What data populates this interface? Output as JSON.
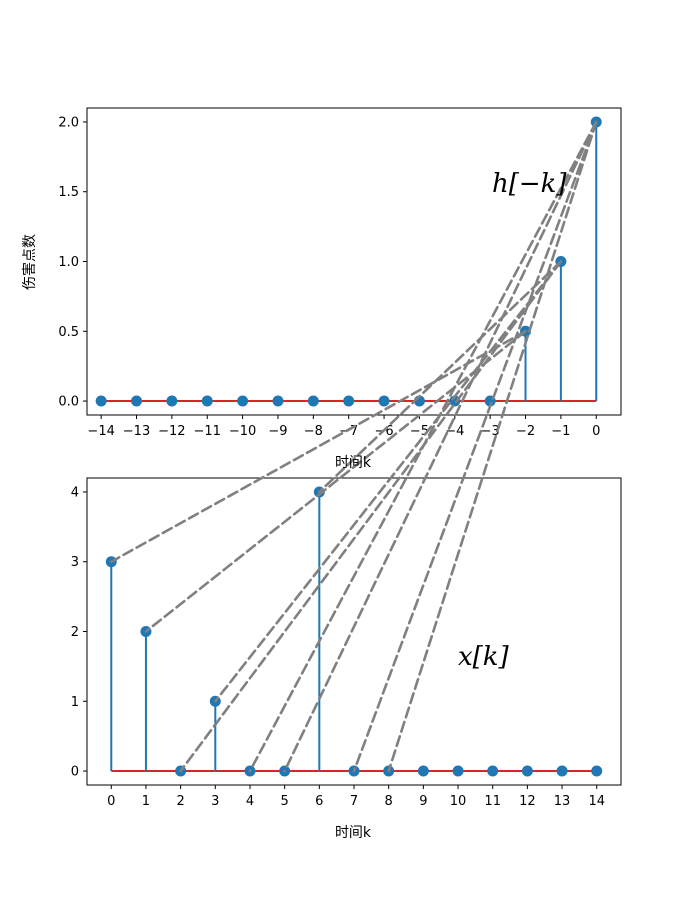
{
  "chart_data": [
    {
      "type": "stem",
      "id": "top",
      "ylabel": "伤害点数",
      "xlabel": "时间k",
      "annotation": "h[−k]",
      "x": [
        -14,
        -13,
        -12,
        -11,
        -10,
        -9,
        -8,
        -7,
        -6,
        -5,
        -4,
        -3,
        -2,
        -1,
        0
      ],
      "values": [
        0,
        0,
        0,
        0,
        0,
        0,
        0,
        0,
        0,
        0,
        0,
        0,
        0.5,
        1,
        2
      ],
      "xlim": [
        -14.4,
        0.7
      ],
      "ylim": [
        -0.1,
        2.1
      ],
      "yticks": [
        "0.0",
        "0.5",
        "1.0",
        "1.5",
        "2.0"
      ],
      "ytick_values": [
        0,
        0.5,
        1,
        1.5,
        2
      ],
      "xticks": [
        "−14",
        "−13",
        "−12",
        "−11",
        "−10",
        "−9",
        "−8",
        "−7",
        "−6",
        "−5",
        "−4",
        "−3",
        "−2",
        "−1",
        "0"
      ],
      "xtick_values": [
        -14,
        -13,
        -12,
        -11,
        -10,
        -9,
        -8,
        -7,
        -6,
        -5,
        -4,
        -3,
        -2,
        -1,
        0
      ],
      "colors": {
        "stem": "#1f77b4",
        "baseline": "#d62728"
      }
    },
    {
      "type": "stem",
      "id": "bottom",
      "xlabel": "时间k",
      "annotation": "x[k]",
      "x": [
        0,
        1,
        2,
        3,
        4,
        5,
        6,
        7,
        8,
        9,
        10,
        11,
        12,
        13,
        14
      ],
      "values": [
        3,
        2,
        0,
        1,
        0,
        0,
        4,
        0,
        0,
        0,
        0,
        0,
        0,
        0,
        0
      ],
      "xlim": [
        -0.7,
        14.7
      ],
      "ylim": [
        -0.2,
        4.2
      ],
      "yticks": [
        "0",
        "1",
        "2",
        "3",
        "4"
      ],
      "ytick_values": [
        0,
        1,
        2,
        3,
        4
      ],
      "xticks": [
        "0",
        "1",
        "2",
        "3",
        "4",
        "5",
        "6",
        "7",
        "8",
        "9",
        "10",
        "11",
        "12",
        "13",
        "14"
      ],
      "xtick_values": [
        0,
        1,
        2,
        3,
        4,
        5,
        6,
        7,
        8,
        9,
        10,
        11,
        12,
        13,
        14
      ],
      "colors": {
        "stem": "#1f77b4",
        "baseline": "#d62728"
      }
    }
  ],
  "connections": {
    "color": "#808080",
    "pairs": [
      {
        "from_top_k": -2,
        "to_bottom_k": 0
      },
      {
        "from_top_k": -2,
        "to_bottom_k": 1
      },
      {
        "from_top_k": -1,
        "to_bottom_k": 2
      },
      {
        "from_top_k": -1,
        "to_bottom_k": 3
      },
      {
        "from_top_k": 0,
        "to_bottom_k": 4
      },
      {
        "from_top_k": 0,
        "to_bottom_k": 5
      },
      {
        "from_top_k": -1,
        "to_bottom_k": 6
      },
      {
        "from_top_k": 0,
        "to_bottom_k": 7
      },
      {
        "from_top_k": 0,
        "to_bottom_k": 8
      }
    ]
  }
}
